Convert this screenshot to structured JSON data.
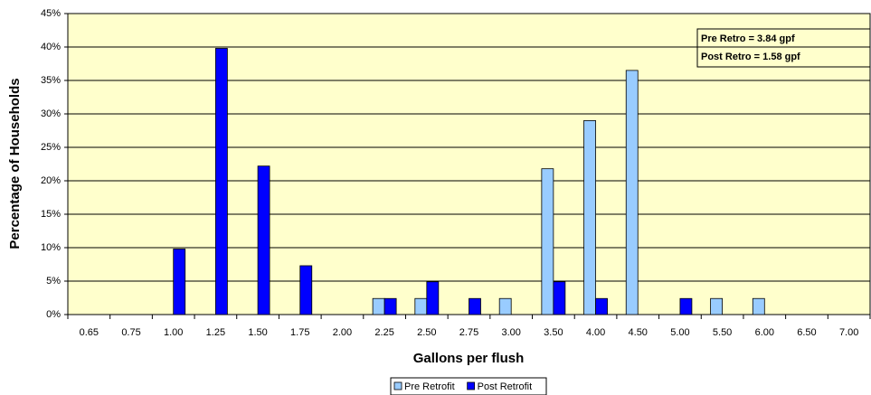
{
  "chart_data": {
    "type": "bar",
    "xlabel": "Gallons per flush",
    "ylabel": "Percentage of Households",
    "categories": [
      "0.65",
      "0.75",
      "1.00",
      "1.25",
      "1.50",
      "1.75",
      "2.00",
      "2.25",
      "2.50",
      "2.75",
      "3.00",
      "3.50",
      "4.00",
      "4.50",
      "5.00",
      "5.50",
      "6.00",
      "6.50",
      "7.00"
    ],
    "series": [
      {
        "name": "Pre Retrofit",
        "color": "#99ccff",
        "values": [
          0,
          0,
          0,
          0,
          0,
          0,
          0,
          2.4,
          2.4,
          0,
          2.4,
          21.8,
          29,
          36.5,
          0,
          2.4,
          2.4,
          0,
          0
        ]
      },
      {
        "name": "Post Retrofit",
        "color": "#0000ff",
        "values": [
          0,
          0,
          9.8,
          39.8,
          22.2,
          7.3,
          0,
          2.4,
          4.9,
          2.4,
          0,
          4.9,
          2.4,
          0,
          2.4,
          0,
          0,
          0,
          0
        ]
      }
    ],
    "ylim": [
      0,
      45
    ],
    "yticks": [
      {
        "value": 0,
        "label": "0%"
      },
      {
        "value": 5,
        "label": "5%"
      },
      {
        "value": 10,
        "label": "10%"
      },
      {
        "value": 15,
        "label": "15%"
      },
      {
        "value": 20,
        "label": "20%"
      },
      {
        "value": 25,
        "label": "25%"
      },
      {
        "value": 30,
        "label": "30%"
      },
      {
        "value": 35,
        "label": "35%"
      },
      {
        "value": 40,
        "label": "40%"
      },
      {
        "value": 45,
        "label": "45%"
      }
    ],
    "grid": true,
    "annotations": [
      "Pre Retro = 3.84 gpf",
      "Post Retro = 1.58 gpf"
    ]
  }
}
